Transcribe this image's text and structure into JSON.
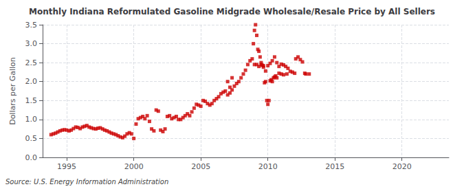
{
  "chart_data": {
    "type": "scatter",
    "title": "Monthly Indiana Reformulated Gasoline Midgrade Wholesale/Resale Price by All Sellers",
    "ylabel": "Dollars per Gallon",
    "source": "Source: U.S. Energy Information Administration",
    "color": "#cc0000",
    "marker": "square",
    "grid": true,
    "xlim": [
      1993.2,
      2023.5
    ],
    "ylim": [
      0.0,
      3.5
    ],
    "xticks": [
      1995,
      2000,
      2005,
      2010,
      2015,
      2020
    ],
    "yticks": [
      {
        "value": 0.0,
        "label": "0.0"
      },
      0.5,
      {
        "value": 1.0,
        "label": "1.0"
      },
      1.5,
      {
        "value": 2.0,
        "label": "2.0"
      },
      2.5,
      {
        "value": 3.0,
        "label": "3.0"
      },
      3.5
    ],
    "x": [
      1993.83,
      1994.0,
      1994.17,
      1994.33,
      1994.5,
      1994.67,
      1994.83,
      1995.0,
      1995.17,
      1995.33,
      1995.5,
      1995.67,
      1995.83,
      1996.0,
      1996.17,
      1996.33,
      1996.5,
      1996.67,
      1996.83,
      1997.0,
      1997.17,
      1997.33,
      1997.5,
      1997.67,
      1997.83,
      1998.0,
      1998.17,
      1998.33,
      1998.5,
      1998.67,
      1998.83,
      1999.0,
      1999.17,
      1999.33,
      1999.5,
      1999.67,
      1999.83,
      2000.0,
      2000.17,
      2000.33,
      2000.5,
      2000.67,
      2000.83,
      2001.0,
      2001.17,
      2001.33,
      2001.5,
      2001.67,
      2001.83,
      2002.0,
      2002.17,
      2002.33,
      2002.5,
      2002.67,
      2002.83,
      2003.0,
      2003.17,
      2003.33,
      2003.5,
      2003.67,
      2003.83,
      2004.0,
      2004.17,
      2004.33,
      2004.5,
      2004.67,
      2004.83,
      2005.0,
      2005.17,
      2005.33,
      2005.5,
      2005.67,
      2005.83,
      2006.0,
      2006.17,
      2006.33,
      2006.5,
      2006.67,
      2006.83,
      2007.0,
      2007.17,
      2007.33,
      2007.5,
      2007.67,
      2007.83,
      2008.0,
      2008.17,
      2008.33,
      2008.5,
      2008.67,
      2008.83,
      2009.0,
      2009.17,
      2009.33,
      2009.5,
      2009.67,
      2009.83,
      2010.0,
      2010.17,
      2010.33,
      2010.5,
      2010.67,
      2010.83,
      2011.0,
      2011.17,
      2011.33,
      2011.5,
      2011.67,
      2011.83,
      2012.0,
      2007.0,
      2007.17,
      2007.33,
      2008.92,
      2009.0,
      2009.08,
      2009.17,
      2009.25,
      2009.33,
      2009.42,
      2009.5,
      2009.58,
      2009.67,
      2009.75,
      2009.83,
      2009.92,
      2010.0,
      2010.08,
      2010.17,
      2010.25,
      2010.33,
      2010.42,
      2010.5,
      2010.58,
      2010.67,
      2010.83,
      2011.0,
      2011.17,
      2011.42,
      2012.08,
      2012.25,
      2012.42,
      2012.58,
      2012.75,
      2012.83,
      2013.08
    ],
    "values": [
      0.6,
      0.62,
      0.64,
      0.67,
      0.7,
      0.72,
      0.73,
      0.72,
      0.7,
      0.72,
      0.76,
      0.8,
      0.79,
      0.76,
      0.8,
      0.82,
      0.84,
      0.8,
      0.78,
      0.76,
      0.75,
      0.77,
      0.78,
      0.75,
      0.72,
      0.7,
      0.67,
      0.64,
      0.62,
      0.6,
      0.57,
      0.54,
      0.52,
      0.56,
      0.62,
      0.65,
      0.62,
      0.5,
      0.88,
      1.02,
      1.05,
      1.08,
      1.02,
      1.1,
      0.95,
      0.75,
      0.7,
      1.25,
      1.22,
      0.72,
      0.68,
      0.75,
      1.08,
      1.1,
      1.02,
      1.05,
      1.08,
      1.0,
      1.0,
      1.05,
      1.1,
      1.15,
      1.1,
      1.2,
      1.3,
      1.4,
      1.38,
      1.35,
      1.5,
      1.48,
      1.42,
      1.38,
      1.42,
      1.5,
      1.55,
      1.6,
      1.68,
      1.72,
      1.75,
      1.65,
      1.7,
      1.78,
      1.88,
      1.95,
      2.0,
      2.1,
      2.2,
      2.3,
      2.45,
      2.55,
      2.6,
      2.45,
      2.45,
      2.4,
      2.45,
      2.38,
      2.28,
      2.42,
      2.48,
      2.55,
      2.65,
      2.5,
      2.4,
      2.46,
      2.44,
      2.4,
      2.35,
      2.27,
      2.25,
      2.22,
      2.0,
      1.85,
      2.1,
      3.0,
      3.35,
      3.5,
      3.22,
      2.85,
      2.8,
      2.65,
      2.5,
      2.43,
      2.42,
      1.97,
      2.0,
      1.5,
      1.4,
      1.5,
      2.02,
      2.05,
      2.0,
      2.1,
      2.12,
      2.15,
      2.1,
      2.22,
      2.2,
      2.18,
      2.2,
      2.6,
      2.65,
      2.58,
      2.52,
      2.22,
      2.2,
      2.2
    ]
  }
}
